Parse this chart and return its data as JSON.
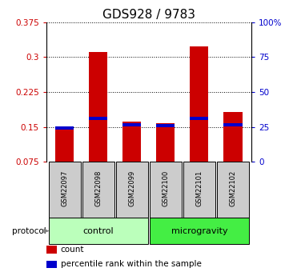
{
  "title": "GDS928 / 9783",
  "samples": [
    "GSM22097",
    "GSM22098",
    "GSM22099",
    "GSM22100",
    "GSM22101",
    "GSM22102"
  ],
  "groups": [
    "control",
    "control",
    "control",
    "microgravity",
    "microgravity",
    "microgravity"
  ],
  "count_values": [
    0.148,
    0.31,
    0.162,
    0.158,
    0.322,
    0.182
  ],
  "percentile_values": [
    0.148,
    0.168,
    0.154,
    0.152,
    0.168,
    0.155
  ],
  "ylim": [
    0.075,
    0.375
  ],
  "yticks": [
    0.075,
    0.15,
    0.225,
    0.3,
    0.375
  ],
  "ytick_labels": [
    "0.075",
    "0.15",
    "0.225",
    "0.3",
    "0.375"
  ],
  "right_yticks": [
    0,
    25,
    50,
    75,
    100
  ],
  "right_ytick_labels": [
    "0",
    "25",
    "50",
    "75",
    "100%"
  ],
  "bar_color": "#cc0000",
  "percentile_color": "#0000cc",
  "control_color": "#bbffbb",
  "microgravity_color": "#44ee44",
  "sample_box_color": "#cccccc",
  "title_fontsize": 11,
  "bar_width": 0.55,
  "protocol_label": "protocol",
  "legend_count": "count",
  "legend_percentile": "percentile rank within the sample"
}
